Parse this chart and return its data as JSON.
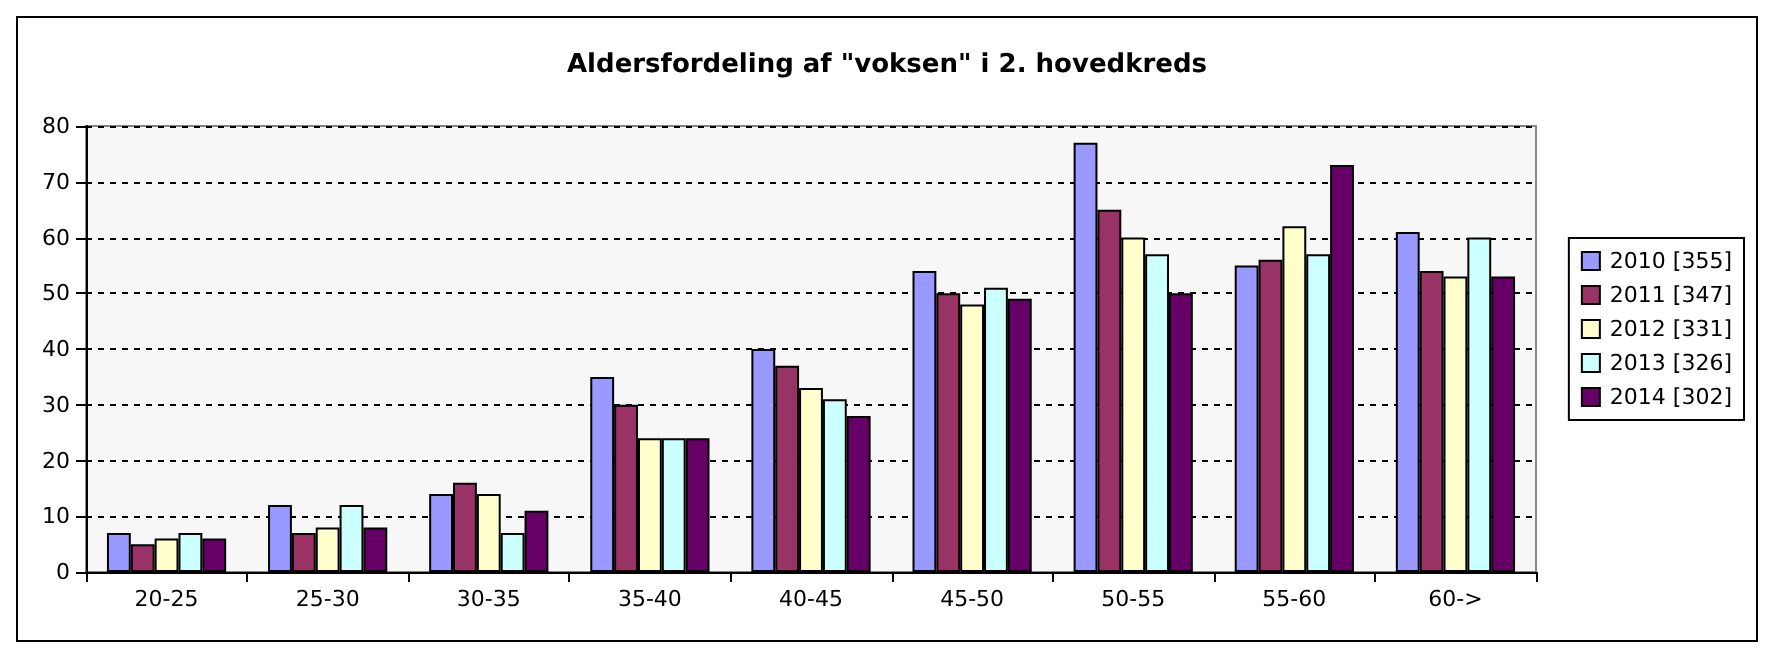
{
  "chart_data": {
    "type": "bar",
    "title": "Aldersfordeling af \"voksen\" i 2. hovedkreds",
    "categories": [
      "20-25",
      "25-30",
      "30-35",
      "35-40",
      "40-45",
      "45-50",
      "50-55",
      "55-60",
      "60->"
    ],
    "series": [
      {
        "name": "2010 [355]",
        "color": "#9999ff",
        "values": [
          7,
          12,
          14,
          35,
          40,
          54,
          77,
          55,
          61
        ]
      },
      {
        "name": "2011 [347]",
        "color": "#993366",
        "values": [
          5,
          7,
          16,
          30,
          37,
          50,
          65,
          56,
          54
        ]
      },
      {
        "name": "2012 [331]",
        "color": "#ffffcc",
        "values": [
          6,
          8,
          14,
          24,
          33,
          48,
          60,
          62,
          53
        ]
      },
      {
        "name": "2013 [326]",
        "color": "#ccffff",
        "values": [
          7,
          12,
          7,
          24,
          31,
          51,
          57,
          57,
          60
        ]
      },
      {
        "name": "2014 [302]",
        "color": "#660066",
        "values": [
          6,
          8,
          11,
          24,
          28,
          49,
          50,
          73,
          53
        ]
      }
    ],
    "ylim": [
      0,
      80
    ],
    "yticks": [
      0,
      10,
      20,
      30,
      40,
      50,
      60,
      70,
      80
    ],
    "grid": "y",
    "legend": "right"
  }
}
